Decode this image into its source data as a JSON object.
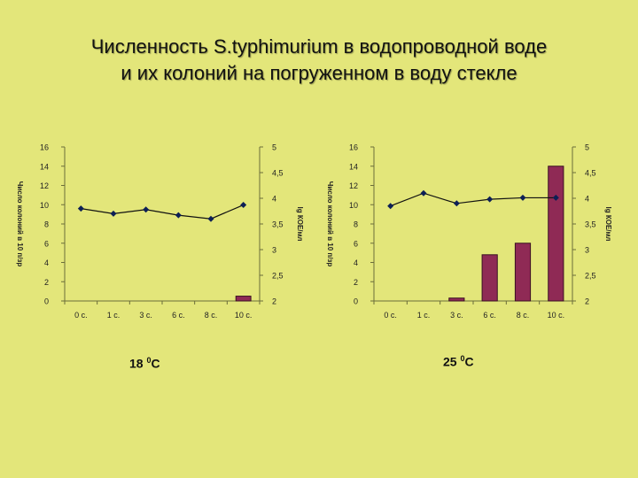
{
  "slide": {
    "title_line1": "Численность S.typhimurium в водопроводной воде",
    "title_line2": "и их колоний на погруженном в воду стекле"
  },
  "chart_data": [
    {
      "type": "bar",
      "caption_value": "18",
      "caption_superscript": "0",
      "caption_unit": "С",
      "categories": [
        "0 с.",
        "1 с.",
        "3 с.",
        "6 с.",
        "8 с.",
        "10 с."
      ],
      "ylabel_left": "Число колоний в 10 п/зр",
      "ylabel_right": "lg КОЕ/мл",
      "ylim_left": [
        0,
        16
      ],
      "yticks_left": [
        "0",
        "2",
        "4",
        "6",
        "8",
        "10",
        "12",
        "14",
        "16"
      ],
      "ylim_right": [
        2,
        5
      ],
      "yticks_right": [
        "2",
        "2,5",
        "3",
        "3,5",
        "4",
        "4,5",
        "5"
      ],
      "bar_color": "#8f2a55",
      "line_color": "#0d1f55",
      "bar_values": [
        0,
        0,
        0,
        0,
        0,
        0.5
      ],
      "line_values": [
        3.8,
        3.7,
        3.78,
        3.67,
        3.6,
        3.87
      ]
    },
    {
      "type": "bar",
      "caption_value": "25",
      "caption_superscript": "0",
      "caption_unit": "С",
      "categories": [
        "0 с.",
        "1 с.",
        "3 с.",
        "6 с.",
        "8 с.",
        "10 с."
      ],
      "ylabel_left": "Число колоний в 10 п/зр",
      "ylabel_right": "lg КОЕ/мл",
      "ylim_left": [
        0,
        16
      ],
      "yticks_left": [
        "0",
        "2",
        "4",
        "6",
        "8",
        "10",
        "12",
        "14",
        "16"
      ],
      "ylim_right": [
        2,
        5
      ],
      "yticks_right": [
        "2",
        "2,5",
        "3",
        "3,5",
        "4",
        "4,5",
        "5"
      ],
      "bar_color": "#8f2a55",
      "line_color": "#0d1f55",
      "bar_values": [
        0,
        0,
        0.3,
        4.8,
        6,
        14
      ],
      "line_values": [
        3.85,
        4.1,
        3.9,
        3.98,
        4.01,
        4.01
      ]
    }
  ]
}
